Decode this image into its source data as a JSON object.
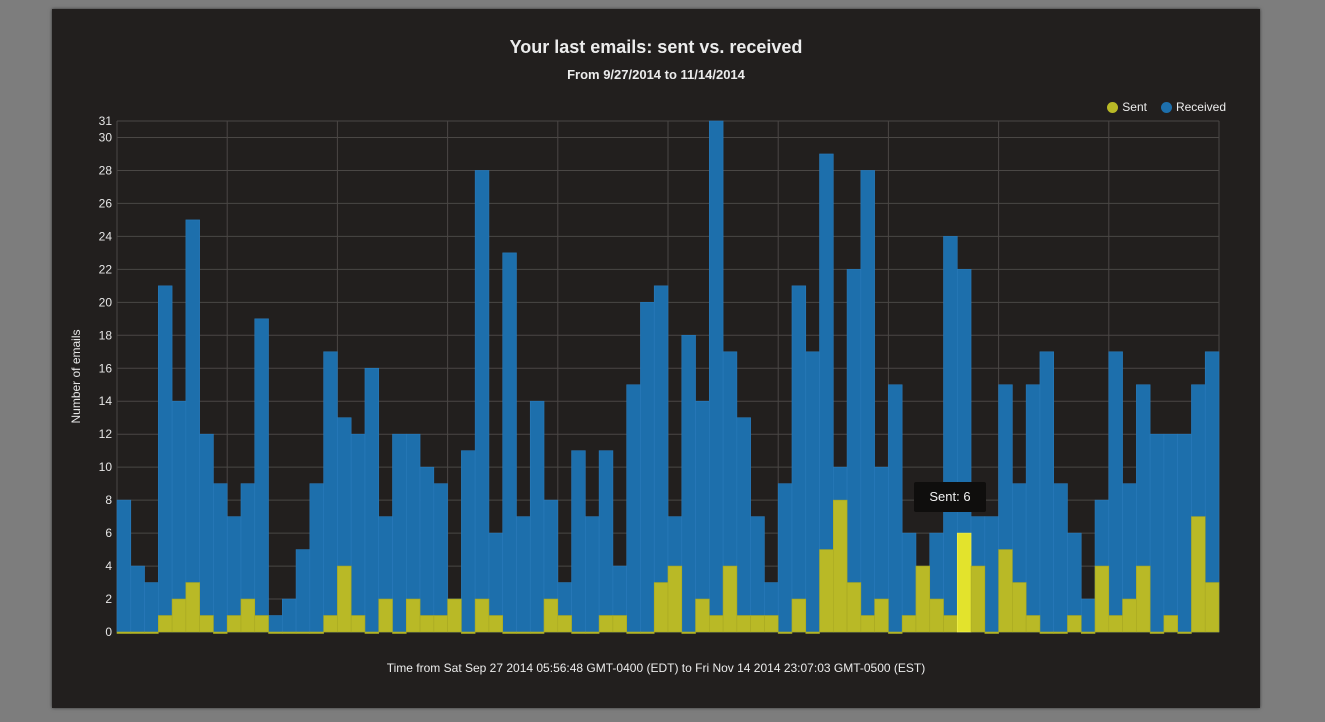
{
  "chart_data": {
    "type": "bar",
    "title": "Your last emails: sent vs. received",
    "subtitle": "From 9/27/2014 to 11/14/2014",
    "xlabel": "Time from Sat Sep 27 2014 05:56:48 GMT-0400 (EDT) to Fri Nov 14 2014 23:07:03 GMT-0500 (EST)",
    "ylabel": "Number of emails",
    "ylim": [
      0,
      31
    ],
    "yticks": [
      "0",
      "2",
      "4",
      "6",
      "8",
      "10",
      "12",
      "14",
      "16",
      "18",
      "20",
      "22",
      "24",
      "26",
      "28",
      "30",
      "31"
    ],
    "grid": true,
    "legend_position": "top-right",
    "stacked": false,
    "series": [
      {
        "name": "Sent",
        "color": "#b9b926",
        "values": [
          0,
          0,
          0,
          1,
          2,
          3,
          1,
          0,
          1,
          2,
          1,
          0,
          0,
          0,
          0,
          1,
          4,
          1,
          0,
          2,
          0,
          2,
          1,
          1,
          2,
          0,
          2,
          1,
          0,
          0,
          0,
          2,
          1,
          0,
          0,
          1,
          1,
          0,
          0,
          3,
          4,
          0,
          2,
          1,
          4,
          1,
          1,
          1,
          0,
          2,
          0,
          5,
          8,
          3,
          1,
          2,
          0,
          1,
          4,
          2,
          1,
          6,
          4,
          0,
          5,
          3,
          1,
          0,
          0,
          1,
          0,
          4,
          1,
          2,
          4,
          0,
          1,
          0,
          7,
          3
        ]
      },
      {
        "name": "Received",
        "color": "#1d6fac",
        "values": [
          8,
          4,
          3,
          21,
          14,
          25,
          12,
          9,
          7,
          9,
          19,
          1,
          2,
          5,
          9,
          17,
          13,
          12,
          16,
          7,
          12,
          12,
          10,
          9,
          2,
          11,
          28,
          6,
          23,
          7,
          14,
          8,
          3,
          11,
          7,
          11,
          4,
          15,
          20,
          21,
          7,
          18,
          14,
          31,
          17,
          13,
          7,
          3,
          9,
          21,
          17,
          29,
          10,
          22,
          28,
          10,
          15,
          6,
          2,
          6,
          24,
          22,
          7,
          7,
          15,
          9,
          15,
          17,
          9,
          6,
          2,
          8,
          17,
          9,
          15,
          12,
          12,
          12,
          15,
          17
        ]
      }
    ],
    "tooltip": {
      "text": "Sent: 6"
    }
  }
}
